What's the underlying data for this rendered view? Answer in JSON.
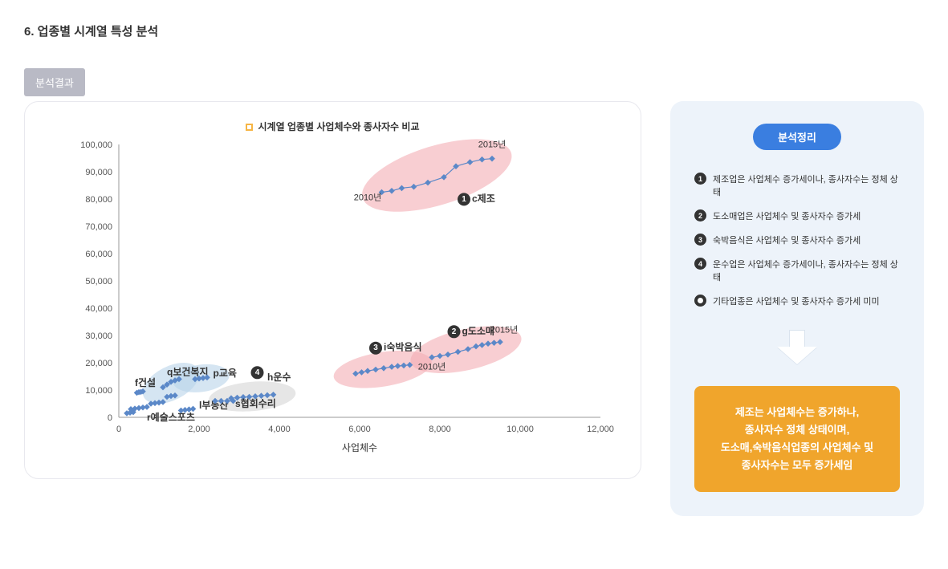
{
  "page_title": "6. 업종별 시계열 특성 분석",
  "result_tag": "분석결과",
  "chart": {
    "legend": "시계열 업종별 사업체수와 종사자수 비교",
    "x_title": "사업체수",
    "xlim": [
      0,
      12000
    ],
    "ylim": [
      0,
      100000
    ],
    "x_ticks": [
      0,
      2000,
      4000,
      6000,
      8000,
      10000,
      12000
    ],
    "y_ticks": [
      0,
      10000,
      20000,
      30000,
      40000,
      50000,
      60000,
      70000,
      80000,
      90000,
      100000
    ],
    "series": [
      {
        "name": "c제조",
        "badge": "1",
        "points": [
          [
            6550,
            82500
          ],
          [
            6800,
            83000
          ],
          [
            7050,
            84000
          ],
          [
            7350,
            84500
          ],
          [
            7700,
            86000
          ],
          [
            8100,
            88000
          ],
          [
            8400,
            92000
          ],
          [
            8750,
            93500
          ],
          [
            9050,
            94500
          ],
          [
            9300,
            94800
          ]
        ],
        "label_xy": [
          8800,
          79000
        ],
        "badge_xy": [
          8600,
          79000
        ],
        "hl": "pink",
        "ann_start": "2010년",
        "ann_start_xy": [
          6200,
          79500
        ],
        "ann_end": "2015년",
        "ann_end_xy": [
          9300,
          99000
        ]
      },
      {
        "name": "g도소매",
        "badge": "2",
        "points": [
          [
            7800,
            22000
          ],
          [
            8000,
            22500
          ],
          [
            8200,
            23000
          ],
          [
            8450,
            24000
          ],
          [
            8700,
            25000
          ],
          [
            8900,
            26000
          ],
          [
            9050,
            26500
          ],
          [
            9200,
            27000
          ],
          [
            9350,
            27300
          ],
          [
            9500,
            27600
          ]
        ],
        "label_xy": [
          8550,
          30500
        ],
        "badge_xy": [
          8350,
          30500
        ],
        "hl": "pink",
        "ann_start": "2010년",
        "ann_start_xy": [
          7800,
          17500
        ],
        "ann_end": "2015년",
        "ann_end_xy": [
          9600,
          31000
        ]
      },
      {
        "name": "i숙박음식",
        "badge": "3",
        "points": [
          [
            5900,
            16000
          ],
          [
            6050,
            16500
          ],
          [
            6200,
            17000
          ],
          [
            6400,
            17500
          ],
          [
            6600,
            18000
          ],
          [
            6800,
            18500
          ],
          [
            6950,
            18800
          ],
          [
            7100,
            19000
          ],
          [
            7250,
            19200
          ]
        ],
        "label_xy": [
          6600,
          24500
        ],
        "badge_xy": [
          6400,
          24500
        ],
        "hl": "pink"
      },
      {
        "name": "h운수",
        "badge": "4",
        "points": [
          [
            2800,
            7000
          ],
          [
            2950,
            7200
          ],
          [
            3100,
            7400
          ],
          [
            3250,
            7500
          ],
          [
            3400,
            7700
          ],
          [
            3550,
            7900
          ],
          [
            3700,
            8100
          ],
          [
            3850,
            8300
          ]
        ],
        "label_xy": [
          3700,
          13500
        ],
        "badge_xy": [
          3450,
          15500
        ],
        "hl": "gray"
      },
      {
        "name": "q보건복지",
        "points": [
          [
            1100,
            11000
          ],
          [
            1200,
            12000
          ],
          [
            1300,
            13000
          ],
          [
            1400,
            13500
          ],
          [
            1500,
            14000
          ]
        ],
        "label_xy": [
          1200,
          15500
        ],
        "hl": "blue"
      },
      {
        "name": "p교육",
        "points": [
          [
            1900,
            14000
          ],
          [
            2000,
            14200
          ],
          [
            2100,
            14400
          ],
          [
            2200,
            14600
          ]
        ],
        "label_xy": [
          2350,
          15000
        ],
        "hl": "blue"
      },
      {
        "name": "f건설",
        "points": [
          [
            450,
            9000
          ],
          [
            500,
            9200
          ],
          [
            550,
            9300
          ],
          [
            600,
            9500
          ]
        ],
        "label_xy": [
          400,
          11500
        ]
      },
      {
        "name": "l부동산",
        "points": [
          [
            1550,
            2500
          ],
          [
            1650,
            2700
          ],
          [
            1750,
            2900
          ],
          [
            1850,
            3100
          ]
        ],
        "label_xy": [
          2000,
          3200
        ]
      },
      {
        "name": "s협회수리",
        "points": [
          [
            2400,
            6000
          ],
          [
            2550,
            6000
          ],
          [
            2700,
            6000
          ],
          [
            2850,
            6000
          ]
        ],
        "label_xy": [
          2900,
          3800
        ]
      },
      {
        "name": "r예술스포츠",
        "points": [
          [
            200,
            1500
          ],
          [
            280,
            1700
          ],
          [
            360,
            1900
          ]
        ],
        "label_xy": [
          700,
          -1200
        ]
      },
      {
        "name": "_misc1",
        "points": [
          [
            300,
            3000
          ],
          [
            400,
            3200
          ],
          [
            500,
            3400
          ],
          [
            600,
            3600
          ],
          [
            700,
            3800
          ]
        ]
      },
      {
        "name": "_misc2",
        "points": [
          [
            800,
            5000
          ],
          [
            900,
            5200
          ],
          [
            1000,
            5400
          ],
          [
            1100,
            5600
          ]
        ]
      },
      {
        "name": "_misc3",
        "points": [
          [
            1200,
            7500
          ],
          [
            1300,
            7800
          ],
          [
            1400,
            8000
          ]
        ]
      }
    ],
    "colors": {
      "point": "#5b88c8",
      "pink": "#f4aeb4",
      "blue": "#b9d4ea",
      "gray": "#d6d6d6",
      "badge": "#333333"
    }
  },
  "side": {
    "title": "분석정리",
    "bullets": [
      {
        "num": "1",
        "text": "제조업은 사업체수 증가세이나, 종사자수는 정체 상태"
      },
      {
        "num": "2",
        "text": "도소매업은 사업체수 및 종사자수 증가세"
      },
      {
        "num": "3",
        "text": "숙박음식은 사업체수 및 종사자수 증가세"
      },
      {
        "num": "4",
        "text": "운수업은 사업체수 증가세이나, 종사자수는 정체 상태"
      },
      {
        "ring": true,
        "text": "기타업종은 사업체수 및 종사자수 증가세 미미"
      }
    ],
    "summary": "제조는 사업체수는 증가하나,\n종사자수 정체 상태이며,\n도소매,숙박음식업종의 사업체수 및\n종사자수는 모두 증가세임"
  }
}
